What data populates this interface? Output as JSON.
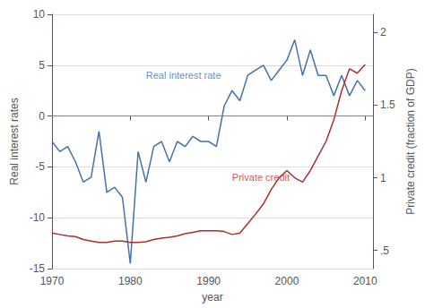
{
  "chart_data": {
    "type": "line",
    "xlabel": "year",
    "ylabel": "Real interest rates",
    "y2label": "Private credit (fraction of GDP)",
    "x": [
      1970,
      1971,
      1972,
      1973,
      1974,
      1975,
      1976,
      1977,
      1978,
      1979,
      1980,
      1981,
      1982,
      1983,
      1984,
      1985,
      1986,
      1987,
      1988,
      1989,
      1990,
      1991,
      1992,
      1993,
      1994,
      1995,
      1996,
      1997,
      1998,
      1999,
      2000,
      2001,
      2002,
      2003,
      2004,
      2005,
      2006,
      2007,
      2008,
      2009,
      2010
    ],
    "series": [
      {
        "color": "#4472aa",
        "values": [
          -2.5,
          -3.5,
          -3.0,
          -4.5,
          -6.5,
          -6.0,
          -1.5,
          -7.5,
          -7.0,
          -8.0,
          -14.5,
          -3.5,
          -6.5,
          -3.0,
          -2.5,
          -4.5,
          -2.5,
          -3.0,
          -2.0,
          -2.5,
          -2.5,
          -3.0,
          1.0,
          2.5,
          1.5,
          4.0,
          4.5,
          5.0,
          3.5,
          4.5,
          5.5,
          7.5,
          4.0,
          6.5,
          4.0,
          4.0,
          2.0,
          4.0,
          2.0,
          3.5,
          2.5
        ]
      },
      {
        "color": "#aa3030",
        "axis": "y2",
        "values": [
          0.62,
          0.61,
          0.6,
          0.595,
          0.575,
          0.565,
          0.555,
          0.555,
          0.565,
          0.565,
          0.555,
          0.555,
          0.56,
          0.575,
          0.585,
          0.59,
          0.6,
          0.615,
          0.625,
          0.635,
          0.635,
          0.635,
          0.63,
          0.61,
          0.62,
          0.685,
          0.75,
          0.82,
          0.92,
          1.0,
          1.05,
          1.0,
          0.97,
          1.05,
          1.15,
          1.25,
          1.4,
          1.6,
          1.75,
          1.72,
          1.78
        ]
      }
    ],
    "xlim": [
      1970,
      2011
    ],
    "xticks": [
      1970,
      1980,
      1990,
      2000,
      2010
    ],
    "ylim": [
      -15,
      10
    ],
    "yticks": [
      -15,
      -10,
      -5,
      0,
      5,
      10
    ],
    "y2lim": [
      0.375,
      2.125
    ],
    "y2ticks": [
      {
        "value": 0.5,
        "label": ".5"
      },
      1,
      1.5,
      2
    ],
    "grid": true,
    "annotations": [
      {
        "text": "Real interest rate",
        "x": 1982,
        "y": 3.5,
        "color": "#4472aa"
      },
      {
        "text": "Private credit",
        "x": 1993,
        "y": -6.5,
        "color": "#aa3030"
      }
    ],
    "reference_lines": [
      {
        "y": 0,
        "color": "#d06070"
      }
    ]
  }
}
